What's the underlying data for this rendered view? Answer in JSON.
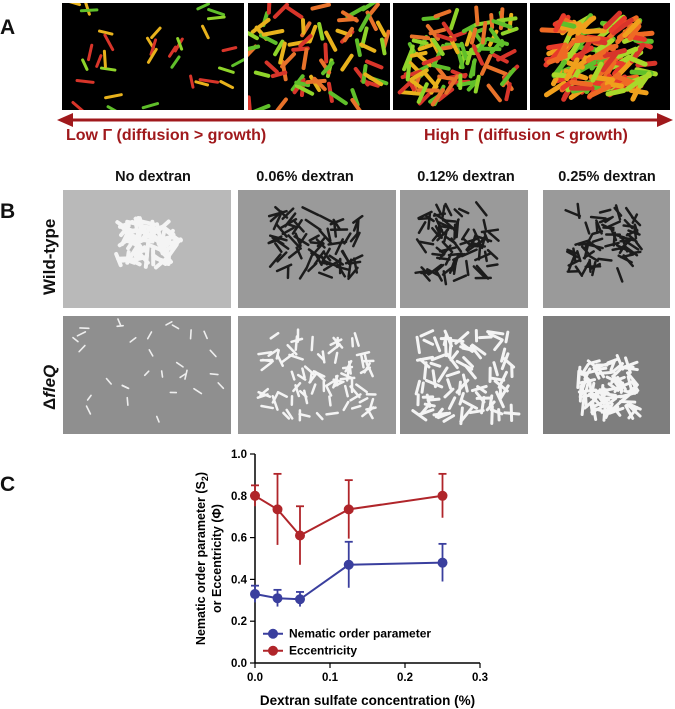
{
  "panel_a": {
    "letter": "A",
    "low_label": "Low Γ (diffusion > growth)",
    "high_label": "High Γ (diffusion < growth)"
  },
  "panel_b": {
    "letter": "B",
    "columns": [
      "No dextran",
      "0.06% dextran",
      "0.12% dextran",
      "0.25% dextran"
    ],
    "rows": [
      {
        "label": "Wild-type"
      },
      {
        "prefix": "Δ",
        "label": "fleQ"
      }
    ]
  },
  "panel_c": {
    "letter": "C"
  },
  "colors": {
    "eccentricity": "#b0252a",
    "nematic": "#3a3f9e",
    "regime_arrow": "#a0191c"
  },
  "chart_data": {
    "type": "line",
    "xlabel": "Dextran sulfate concentration (%)",
    "ylabel_line1": "Nematic order parameter (S",
    "ylabel_sub": "2",
    "ylabel_line1_end": ")",
    "ylabel_line2": "or Eccentricity (Φ)",
    "xlim": [
      0,
      0.3
    ],
    "ylim": [
      0,
      1.0
    ],
    "x_ticks": [
      "0.0",
      "0.1",
      "0.2",
      "0.3"
    ],
    "y_ticks": [
      "0.0",
      "0.2",
      "0.4",
      "0.6",
      "0.8",
      "1.0"
    ],
    "legend_position": "bottom-left",
    "series": [
      {
        "name": "Nematic order parameter",
        "color": "#3a3f9e",
        "x": [
          0,
          0.03,
          0.06,
          0.125,
          0.25
        ],
        "y": [
          0.33,
          0.31,
          0.305,
          0.47,
          0.48
        ],
        "err": [
          0.04,
          0.04,
          0.035,
          0.11,
          0.09
        ]
      },
      {
        "name": "Eccentricity",
        "color": "#b0252a",
        "x": [
          0,
          0.03,
          0.06,
          0.125,
          0.25
        ],
        "y": [
          0.8,
          0.735,
          0.61,
          0.735,
          0.8
        ],
        "err": [
          0.05,
          0.17,
          0.14,
          0.14,
          0.105
        ]
      }
    ]
  }
}
